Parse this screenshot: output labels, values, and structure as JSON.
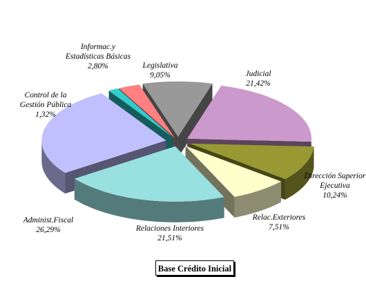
{
  "chart_data": {
    "type": "pie",
    "title": "Base Crédito Inicial",
    "slices": [
      {
        "name": "Judicial",
        "value": 21.42,
        "percent_label": "21,42%",
        "color": "#cc99cc"
      },
      {
        "name": "Dirección Superior Ejecutiva",
        "value": 10.24,
        "percent_label": "10,24%",
        "color": "#999933"
      },
      {
        "name": "Relac.Exteriores",
        "value": 7.51,
        "percent_label": "7,51%",
        "color": "#ffffcc"
      },
      {
        "name": "Relaciones Interiores",
        "value": 21.51,
        "percent_label": "21,51%",
        "color": "#99e0e0"
      },
      {
        "name": "Administ.Fiscal",
        "value": 26.29,
        "percent_label": "26,29%",
        "color": "#c0c0ff"
      },
      {
        "name": "Control de la Gestión Pública",
        "value": 1.32,
        "percent_label": "1,32%",
        "color": "#33cccc"
      },
      {
        "name": "Informac.y Estadísticas Básicas",
        "value": 2.8,
        "percent_label": "2,80%",
        "color": "#ff8080"
      },
      {
        "name": "Legislativa",
        "value": 9.05,
        "percent_label": "9,05%",
        "color": "#999999"
      }
    ],
    "labels": [
      {
        "lines": [
          "Judicial",
          "21,42%"
        ]
      },
      {
        "lines": [
          "Dirección Superior",
          "Ejecutiva",
          "10,24%"
        ]
      },
      {
        "lines": [
          "Relac.Exteriores",
          "7,51%"
        ]
      },
      {
        "lines": [
          "Relaciones Interiores",
          "21,51%"
        ]
      },
      {
        "lines": [
          "Administ.Fiscal",
          "26,29%"
        ]
      },
      {
        "lines": [
          "Control de la",
          "Gestión Pública",
          "1,32%"
        ]
      },
      {
        "lines": [
          "Informac.y",
          "Estadísticas Básicas",
          "2,80%"
        ]
      },
      {
        "lines": [
          "Legislativa",
          "9,05%"
        ]
      }
    ],
    "exploded": true,
    "three_d": true
  }
}
